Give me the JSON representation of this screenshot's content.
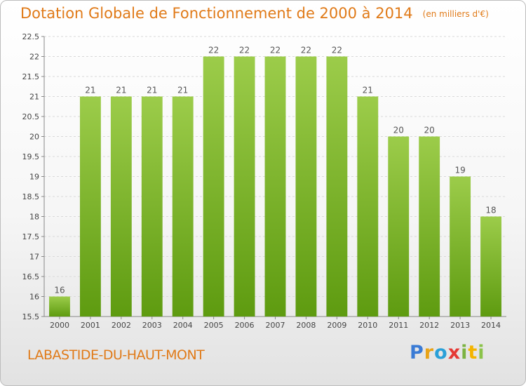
{
  "header": {
    "title": "Dotation Globale de Fonctionnement de 2000 à 2014",
    "subtitle": "(en milliers d'€)"
  },
  "commune": "LABASTIDE-DU-HAUT-MONT",
  "logo": {
    "text": "Proxiti",
    "letters": [
      {
        "ch": "P",
        "color": "#3a7bd5"
      },
      {
        "ch": "r",
        "color": "#e8a317"
      },
      {
        "ch": "o",
        "color": "#2aa0d8"
      },
      {
        "ch": "x",
        "color": "#e53935"
      },
      {
        "ch": "i",
        "color": "#7cb342"
      },
      {
        "ch": "t",
        "color": "#f4b400"
      },
      {
        "ch": "i",
        "color": "#8bc34a"
      }
    ]
  },
  "chart_data": {
    "type": "bar",
    "title": "Dotation Globale de Fonctionnement de 2000 à 2014",
    "subtitle": "(en milliers d'€)",
    "categories": [
      "2000",
      "2001",
      "2002",
      "2003",
      "2004",
      "2005",
      "2006",
      "2007",
      "2008",
      "2009",
      "2010",
      "2011",
      "2012",
      "2013",
      "2014"
    ],
    "values": [
      16,
      21,
      21,
      21,
      21,
      22,
      22,
      22,
      22,
      22,
      21,
      20,
      20,
      19,
      18
    ],
    "data_labels": [
      "16",
      "21",
      "21",
      "21",
      "21",
      "22",
      "22",
      "22",
      "22",
      "22",
      "21",
      "20",
      "20",
      "19",
      "18"
    ],
    "ylim": [
      15.5,
      22.5
    ],
    "yticks": [
      15.5,
      16,
      16.5,
      17,
      17.5,
      18,
      18.5,
      19,
      19.5,
      20,
      20.5,
      21,
      21.5,
      22,
      22.5
    ],
    "ytick_labels": [
      "15.5",
      "16",
      "16.5",
      "17",
      "17.5",
      "18",
      "18.5",
      "19",
      "19.5",
      "20",
      "20.5",
      "21",
      "21.5",
      "22",
      "22.5"
    ],
    "grid": true,
    "bar_color_top": "#9ccc4a",
    "bar_color_bottom": "#5e9b10"
  }
}
